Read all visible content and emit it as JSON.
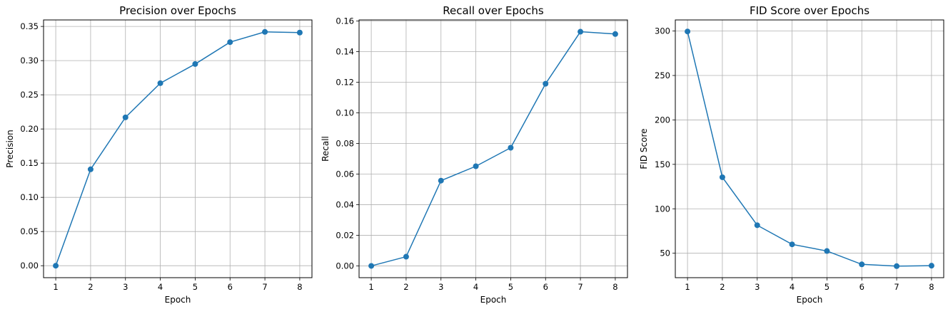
{
  "chart_data": [
    {
      "type": "line",
      "title": "Precision over Epochs",
      "xlabel": "Epoch",
      "ylabel": "Precision",
      "x": [
        1,
        2,
        3,
        4,
        5,
        6,
        7,
        8
      ],
      "series": [
        {
          "values": [
            0.0,
            0.141,
            0.217,
            0.267,
            0.295,
            0.327,
            0.342,
            0.341
          ]
        }
      ],
      "xlim": [
        0.65,
        8.35
      ],
      "ylim": [
        -0.0175,
        0.3595
      ],
      "xticks": [
        1,
        2,
        3,
        4,
        5,
        6,
        7,
        8
      ],
      "yticks": [
        0.0,
        0.05,
        0.1,
        0.15,
        0.2,
        0.25,
        0.3,
        0.35
      ],
      "ytick_labels": [
        "0.00",
        "0.05",
        "0.10",
        "0.15",
        "0.20",
        "0.25",
        "0.30",
        "0.35"
      ],
      "grid": true,
      "color": "#1f77b4"
    },
    {
      "type": "line",
      "title": "Recall over Epochs",
      "xlabel": "Epoch",
      "ylabel": "Recall",
      "x": [
        1,
        2,
        3,
        4,
        5,
        6,
        7,
        8
      ],
      "series": [
        {
          "values": [
            0.0,
            0.006,
            0.0557,
            0.0651,
            0.0772,
            0.119,
            0.153,
            0.1515
          ]
        }
      ],
      "xlim": [
        0.65,
        8.35
      ],
      "ylim": [
        -0.0077,
        0.1607
      ],
      "xticks": [
        1,
        2,
        3,
        4,
        5,
        6,
        7,
        8
      ],
      "yticks": [
        0.0,
        0.02,
        0.04,
        0.06,
        0.08,
        0.1,
        0.12,
        0.14,
        0.16
      ],
      "ytick_labels": [
        "0.00",
        "0.02",
        "0.04",
        "0.06",
        "0.08",
        "0.10",
        "0.12",
        "0.14",
        "0.16"
      ],
      "grid": true,
      "color": "#1f77b4"
    },
    {
      "type": "line",
      "title": "FID Score over Epochs",
      "xlabel": "Epoch",
      "ylabel": "FID Score",
      "x": [
        1,
        2,
        3,
        4,
        5,
        6,
        7,
        8
      ],
      "series": [
        {
          "values": [
            299.5,
            135.5,
            81.5,
            60.0,
            52.5,
            37.5,
            35.5,
            36.0
          ]
        }
      ],
      "xlim": [
        0.65,
        8.35
      ],
      "ylim": [
        22.5,
        312.5
      ],
      "xticks": [
        1,
        2,
        3,
        4,
        5,
        6,
        7,
        8
      ],
      "yticks": [
        50,
        100,
        150,
        200,
        250,
        300
      ],
      "ytick_labels": [
        "50",
        "100",
        "150",
        "200",
        "250",
        "300"
      ],
      "grid": true,
      "color": "#1f77b4"
    }
  ]
}
